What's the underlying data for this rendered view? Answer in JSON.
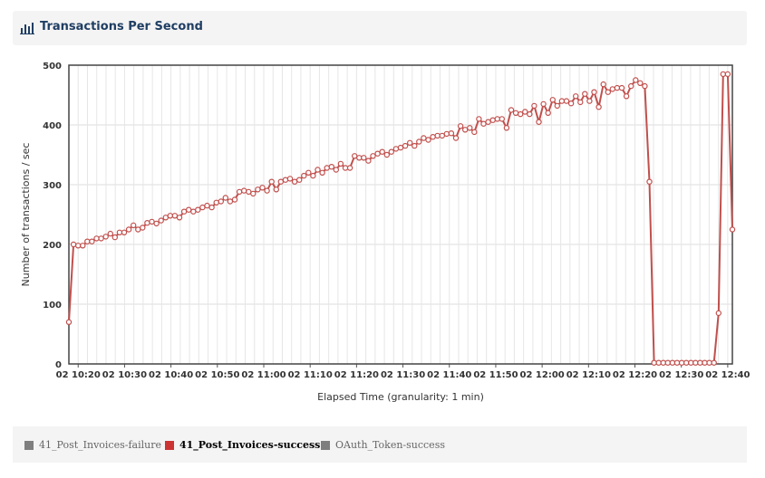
{
  "header": {
    "title": "Transactions Per Second",
    "icon": "bar-chart-icon"
  },
  "legend": {
    "items": [
      {
        "label": "41_Post_Invoices-failure",
        "color": "#7f7f7f",
        "active": false
      },
      {
        "label": "41_Post_Invoices-success",
        "color": "#cc3333",
        "active": true
      },
      {
        "label": "OAuth_Token-success",
        "color": "#7f7f7f",
        "active": false
      }
    ]
  },
  "chart_data": {
    "type": "line",
    "title": "",
    "xlabel": "Elapsed Time (granularity: 1 min)",
    "ylabel": "Number of transactions / sec",
    "ylim": [
      0,
      500
    ],
    "yticks": [
      0,
      100,
      200,
      300,
      400,
      500
    ],
    "xticks": [
      "02 10:20",
      "02 10:30",
      "02 10:40",
      "02 10:50",
      "02 11:00",
      "02 11:10",
      "02 11:20",
      "02 11:30",
      "02 11:40",
      "02 11:50",
      "02 12:00",
      "02 12:10",
      "02 12:20",
      "02 12:30",
      "02 12:40"
    ],
    "grid": true,
    "legend_position": "bottom",
    "x_start": "02 10:18",
    "x_end": "02 12:41",
    "series": [
      {
        "name": "41_Post_Invoices-success",
        "color": "#c0504d",
        "values": [
          70,
          200,
          198,
          198,
          205,
          205,
          210,
          210,
          213,
          218,
          212,
          220,
          220,
          225,
          232,
          225,
          228,
          236,
          238,
          235,
          240,
          245,
          248,
          248,
          245,
          255,
          258,
          255,
          258,
          262,
          265,
          262,
          270,
          272,
          278,
          272,
          275,
          288,
          290,
          288,
          285,
          292,
          295,
          290,
          305,
          292,
          305,
          308,
          310,
          305,
          308,
          315,
          320,
          315,
          325,
          320,
          328,
          330,
          325,
          335,
          328,
          328,
          348,
          345,
          345,
          340,
          348,
          352,
          355,
          350,
          355,
          360,
          362,
          365,
          370,
          365,
          372,
          378,
          375,
          380,
          382,
          382,
          385,
          386,
          378,
          398,
          392,
          395,
          388,
          410,
          402,
          405,
          408,
          410,
          410,
          395,
          425,
          420,
          418,
          422,
          418,
          432,
          405,
          435,
          420,
          442,
          432,
          440,
          440,
          436,
          448,
          438,
          452,
          440,
          455,
          430,
          468,
          455,
          460,
          462,
          462,
          448,
          465,
          475,
          470,
          465,
          305,
          2,
          2,
          2,
          2,
          2,
          2,
          2,
          2,
          2,
          2,
          2,
          2,
          2,
          2,
          85,
          485,
          485,
          225
        ]
      }
    ]
  }
}
